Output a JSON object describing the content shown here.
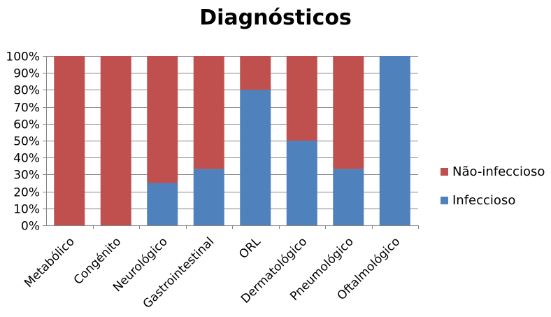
{
  "chart_data": {
    "type": "bar",
    "stacked": true,
    "title": "Diagnósticos",
    "xlabel": "",
    "ylabel": "",
    "categories": [
      "Metabólico",
      "Congénito",
      "Neurológico",
      "Gastrointestinal",
      "ORL",
      "Dermatológico",
      "Pneumológico",
      "Oftalmológico"
    ],
    "series": [
      {
        "name": "Infeccioso",
        "color": "#4F81BD",
        "values": [
          0,
          0,
          25,
          33.3,
          80,
          50,
          33.3,
          100
        ]
      },
      {
        "name": "Não-infeccioso",
        "color": "#C0504D",
        "values": [
          100,
          100,
          75,
          66.7,
          20,
          50,
          66.7,
          0
        ]
      }
    ],
    "ylim": [
      0,
      100
    ],
    "yticks": [
      "0%",
      "10%",
      "20%",
      "30%",
      "40%",
      "50%",
      "60%",
      "70%",
      "80%",
      "90%",
      "100%"
    ],
    "grid": true,
    "legend": {
      "position": "right",
      "order": [
        "Não-infeccioso",
        "Infeccioso"
      ]
    }
  }
}
